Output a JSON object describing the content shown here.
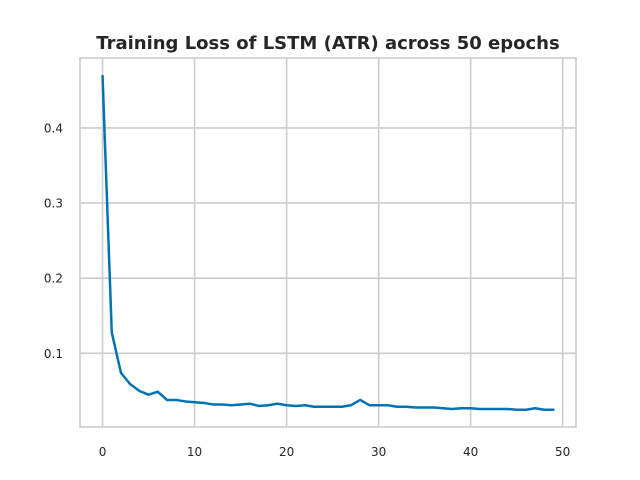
{
  "chart_data": {
    "type": "line",
    "title": "Training Loss of LSTM (ATR) across 50 epochs",
    "xlabel": "",
    "ylabel": "",
    "xlim": [
      -2.45,
      51.45
    ],
    "ylim": [
      0.002,
      0.493
    ],
    "xticks": [
      0,
      10,
      20,
      30,
      40,
      50
    ],
    "yticks": [
      0.1,
      0.2,
      0.3,
      0.4
    ],
    "grid": true,
    "line_color": "#0173b2",
    "series": [
      {
        "x": [
          0,
          1,
          2,
          3,
          4,
          5,
          6,
          7,
          8,
          9,
          10,
          11,
          12,
          13,
          14,
          15,
          16,
          17,
          18,
          19,
          20,
          21,
          22,
          23,
          24,
          25,
          26,
          27,
          28,
          29,
          30,
          31,
          32,
          33,
          34,
          35,
          36,
          37,
          38,
          39,
          40,
          41,
          42,
          43,
          44,
          45,
          46,
          47,
          48,
          49
        ],
        "values": [
          0.469,
          0.128,
          0.074,
          0.059,
          0.05,
          0.045,
          0.049,
          0.038,
          0.038,
          0.036,
          0.035,
          0.034,
          0.032,
          0.032,
          0.031,
          0.032,
          0.033,
          0.03,
          0.031,
          0.033,
          0.031,
          0.03,
          0.031,
          0.029,
          0.029,
          0.029,
          0.029,
          0.031,
          0.038,
          0.031,
          0.031,
          0.031,
          0.029,
          0.029,
          0.028,
          0.028,
          0.028,
          0.027,
          0.026,
          0.027,
          0.027,
          0.026,
          0.026,
          0.026,
          0.026,
          0.025,
          0.025,
          0.027,
          0.025,
          0.025
        ]
      }
    ]
  }
}
